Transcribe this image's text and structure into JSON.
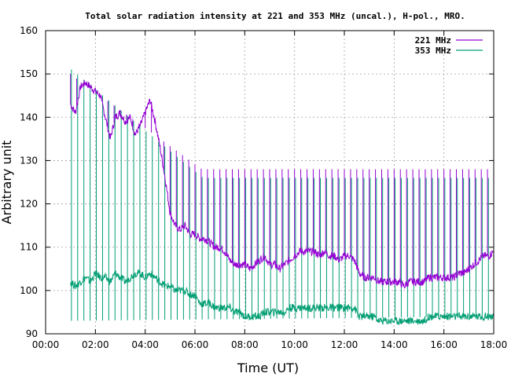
{
  "chart_data": {
    "type": "line",
    "title": "Total solar radiation intensity at 221 and 353 MHz (uncal.), H-pol., MRO.",
    "xlabel": "Time (UT)",
    "ylabel": "Arbitrary unit",
    "xlim": [
      0,
      18
    ],
    "ylim": [
      90,
      160
    ],
    "x_ticks": [
      0,
      2,
      4,
      6,
      8,
      10,
      12,
      14,
      16,
      18
    ],
    "x_tick_labels": [
      "00:00",
      "02:00",
      "04:00",
      "06:00",
      "08:00",
      "10:00",
      "12:00",
      "14:00",
      "16:00",
      "18:00"
    ],
    "y_ticks": [
      90,
      100,
      110,
      120,
      130,
      140,
      150,
      160
    ],
    "y_tick_labels": [
      "90",
      "100",
      "110",
      "120",
      "130",
      "140",
      "150",
      "160"
    ],
    "grid": true,
    "legend_position": "top-right",
    "series": [
      {
        "name": "221 MHz",
        "color": "#9400d3",
        "x": [
          1.0,
          1.2,
          1.4,
          1.6,
          1.8,
          2.0,
          2.2,
          2.4,
          2.6,
          2.8,
          3.0,
          3.2,
          3.4,
          3.6,
          3.8,
          4.0,
          4.2,
          4.4,
          4.6,
          4.8,
          5.0,
          5.2,
          5.4,
          5.6,
          5.8,
          6.0,
          6.2,
          6.4,
          6.6,
          6.8,
          7.0,
          7.2,
          7.4,
          7.6,
          7.8,
          8.0,
          8.2,
          8.4,
          8.6,
          8.8,
          9.0,
          9.2,
          9.4,
          9.6,
          9.8,
          10.0,
          10.2,
          10.4,
          10.6,
          10.8,
          11.0,
          11.2,
          11.4,
          11.6,
          11.8,
          12.0,
          12.2,
          12.4,
          12.6,
          12.8,
          13.0,
          13.2,
          13.4,
          13.6,
          13.8,
          14.0,
          14.2,
          14.4,
          14.6,
          14.8,
          15.0,
          15.2,
          15.4,
          15.6,
          15.8,
          16.0,
          16.2,
          16.4,
          16.6,
          16.8,
          17.0,
          17.2,
          17.4,
          17.6,
          17.8,
          18.0
        ],
        "values": [
          143,
          141,
          147,
          148,
          147,
          146,
          145,
          140,
          135,
          140,
          141,
          139,
          140,
          136,
          138,
          141,
          144,
          139,
          133,
          126,
          118,
          115,
          114,
          115,
          113,
          113,
          112,
          112,
          111,
          110,
          110,
          109,
          107,
          106,
          106,
          106,
          105,
          106,
          107,
          108,
          106,
          106,
          105,
          106,
          107,
          108,
          109,
          109,
          109,
          109,
          108,
          109,
          108,
          108,
          107,
          108,
          108,
          107,
          104,
          103,
          103,
          103,
          102,
          102,
          102,
          102,
          102,
          101,
          102,
          102,
          102,
          102,
          103,
          103,
          103,
          103,
          103,
          103,
          104,
          104,
          105,
          106,
          107,
          108,
          108,
          109
        ]
      },
      {
        "name": "353 MHz",
        "color": "#009e73",
        "x": [
          1.0,
          1.2,
          1.4,
          1.6,
          1.8,
          2.0,
          2.2,
          2.4,
          2.6,
          2.8,
          3.0,
          3.2,
          3.4,
          3.6,
          3.8,
          4.0,
          4.2,
          4.4,
          4.6,
          4.8,
          5.0,
          5.2,
          5.4,
          5.6,
          5.8,
          6.0,
          6.2,
          6.4,
          6.6,
          6.8,
          7.0,
          7.2,
          7.4,
          7.6,
          7.8,
          8.0,
          8.2,
          8.4,
          8.6,
          8.8,
          9.0,
          9.2,
          9.4,
          9.6,
          9.8,
          10.0,
          10.2,
          10.4,
          10.6,
          10.8,
          11.0,
          11.2,
          11.4,
          11.6,
          11.8,
          12.0,
          12.2,
          12.4,
          12.6,
          12.8,
          13.0,
          13.2,
          13.4,
          13.6,
          13.8,
          14.0,
          14.2,
          14.4,
          14.6,
          14.8,
          15.0,
          15.2,
          15.4,
          15.6,
          15.8,
          16.0,
          16.2,
          16.4,
          16.6,
          16.8,
          17.0,
          17.2,
          17.4,
          17.6,
          17.8,
          18.0
        ],
        "values": [
          102,
          101,
          102,
          103,
          102,
          104,
          103,
          103,
          102,
          104,
          103,
          102,
          103,
          104,
          104,
          103,
          104,
          103,
          102,
          101,
          101,
          100,
          100,
          100,
          99,
          99,
          97,
          97,
          97,
          96,
          96,
          96,
          96,
          95,
          95,
          94,
          94,
          94,
          94,
          95,
          95,
          95,
          95,
          95,
          96,
          96,
          96,
          96,
          96,
          96,
          96,
          96,
          96,
          96,
          96,
          96,
          96,
          96,
          94,
          94,
          94,
          94,
          93,
          93,
          93,
          93,
          93,
          93,
          93,
          93,
          93,
          93,
          94,
          94,
          94,
          94,
          94,
          94,
          94,
          94,
          94,
          94,
          94,
          94,
          94,
          94
        ]
      }
    ],
    "calibration_spikes": {
      "x_start": 1.0,
      "x_end": 17.9,
      "interval": 0.25,
      "upper_221": [
        150,
        128
      ],
      "upper_353": [
        151,
        126
      ],
      "lower_353": [
        93,
        94
      ]
    }
  }
}
